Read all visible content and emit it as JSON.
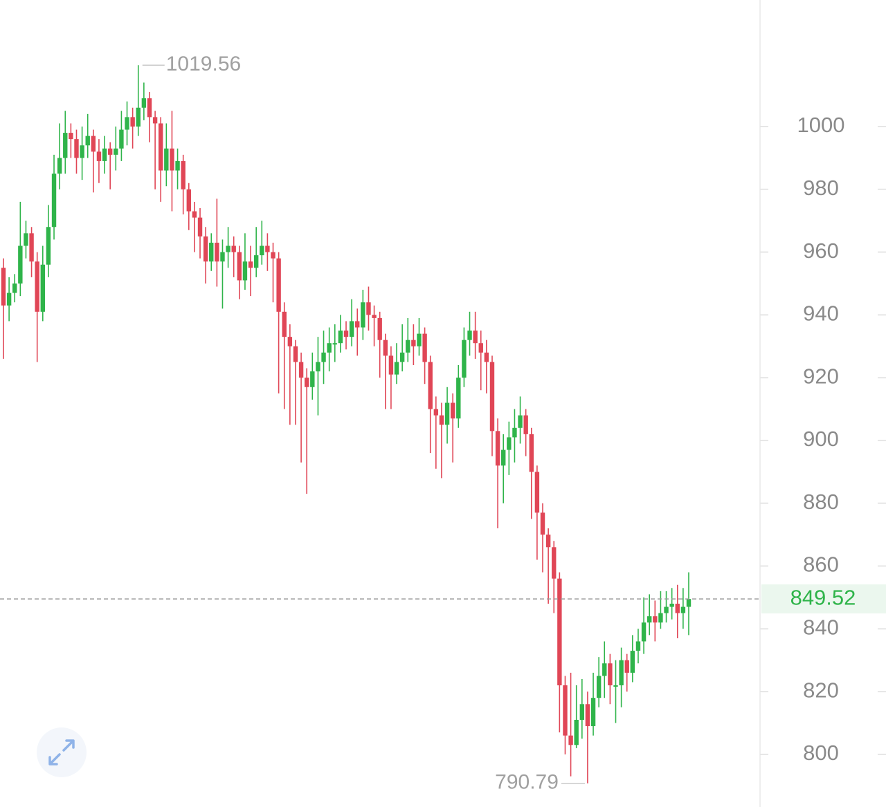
{
  "chart_data": {
    "type": "candlestick",
    "up_color": "#2fb44a",
    "down_color": "#e04656",
    "ylim": [
      785,
      1040
    ],
    "yticks": [
      800,
      820,
      840,
      860,
      880,
      900,
      920,
      940,
      960,
      980,
      1000
    ],
    "open": [
      955,
      943,
      947,
      950,
      962,
      966,
      957,
      941,
      956,
      968,
      985,
      990,
      998,
      996,
      990,
      994,
      997,
      992,
      989,
      993,
      991,
      993,
      999,
      1003,
      1000,
      1006,
      1009,
      1003,
      1001,
      986,
      993,
      986,
      989,
      980,
      973,
      971,
      965,
      957,
      963,
      957,
      960,
      962,
      960,
      951,
      957,
      955,
      959,
      962,
      960,
      958,
      941,
      933,
      930,
      925,
      920,
      917,
      922,
      925,
      928,
      931,
      931,
      935,
      933,
      938,
      936,
      944,
      940,
      939,
      932,
      927,
      921,
      925,
      928,
      932,
      930,
      934,
      925,
      910,
      908,
      905,
      912,
      907,
      920,
      932,
      935,
      931,
      928,
      925,
      903,
      892,
      897,
      901,
      904,
      908,
      902,
      890,
      877,
      870,
      866,
      856,
      822,
      806,
      803,
      811,
      816,
      809,
      818,
      825,
      829,
      822,
      822,
      830,
      826,
      833,
      836,
      842,
      844,
      842,
      845,
      847,
      848,
      845,
      847
    ],
    "high": [
      958,
      952,
      953,
      976,
      970,
      968,
      960,
      962,
      975,
      991,
      1001,
      1005,
      1001,
      999,
      1000,
      1004,
      999,
      996,
      997,
      995,
      1000,
      1005,
      1008,
      1006,
      1019.56,
      1014,
      1011,
      1005,
      1003,
      1001,
      1005,
      993,
      991,
      982,
      976,
      974,
      968,
      966,
      977,
      964,
      968,
      965,
      962,
      966,
      962,
      968,
      970,
      966,
      963,
      960,
      944,
      937,
      932,
      928,
      923,
      928,
      933,
      935,
      936,
      937,
      940,
      938,
      945,
      942,
      948,
      949,
      943,
      941,
      934,
      930,
      931,
      937,
      939,
      937,
      939,
      936,
      927,
      914,
      912,
      917,
      915,
      924,
      936,
      941,
      941,
      935,
      932,
      927,
      907,
      902,
      906,
      910,
      914,
      910,
      904,
      892,
      880,
      872,
      868,
      858,
      825,
      826,
      822,
      824,
      820,
      826,
      831,
      836,
      832,
      830,
      834,
      832,
      838,
      840,
      850,
      851,
      849,
      852,
      852,
      853,
      854,
      853,
      858
    ],
    "low": [
      926,
      938,
      944,
      946,
      958,
      952,
      925,
      938,
      952,
      964,
      980,
      985,
      990,
      985,
      983,
      990,
      979,
      982,
      985,
      980,
      986,
      989,
      994,
      993,
      997,
      1002,
      995,
      980,
      976,
      981,
      973,
      980,
      972,
      967,
      960,
      958,
      950,
      954,
      949,
      942,
      955,
      952,
      945,
      948,
      946,
      952,
      956,
      954,
      944,
      915,
      910,
      905,
      905,
      893,
      883,
      913,
      908,
      918,
      922,
      925,
      928,
      929,
      930,
      927,
      932,
      935,
      930,
      920,
      910,
      910,
      918,
      922,
      925,
      924,
      927,
      918,
      896,
      891,
      888,
      899,
      893,
      904,
      917,
      927,
      926,
      916,
      915,
      895,
      872,
      880,
      889,
      893,
      899,
      895,
      875,
      862,
      858,
      848,
      845,
      807,
      800,
      793,
      802,
      805,
      790.79,
      806,
      815,
      818,
      816,
      810,
      815,
      820,
      823,
      829,
      832,
      838,
      836,
      840,
      842,
      843,
      837,
      840,
      838
    ],
    "close": [
      943,
      947,
      950,
      962,
      966,
      957,
      941,
      956,
      968,
      985,
      990,
      998,
      996,
      990,
      994,
      997,
      992,
      989,
      993,
      991,
      993,
      999,
      1003,
      1000,
      1006,
      1009,
      1003,
      1001,
      986,
      993,
      986,
      989,
      980,
      973,
      971,
      965,
      957,
      963,
      957,
      960,
      962,
      960,
      951,
      957,
      955,
      959,
      962,
      960,
      958,
      941,
      933,
      930,
      925,
      920,
      917,
      922,
      925,
      928,
      931,
      931,
      935,
      933,
      938,
      936,
      944,
      940,
      939,
      932,
      927,
      921,
      925,
      928,
      932,
      930,
      934,
      925,
      910,
      908,
      905,
      912,
      907,
      920,
      932,
      935,
      931,
      928,
      925,
      903,
      892,
      897,
      901,
      904,
      908,
      902,
      890,
      877,
      870,
      866,
      856,
      822,
      806,
      803,
      811,
      816,
      809,
      818,
      825,
      829,
      822,
      822,
      830,
      826,
      833,
      836,
      842,
      844,
      842,
      845,
      847,
      848,
      845,
      847,
      849.52
    ]
  }
}
